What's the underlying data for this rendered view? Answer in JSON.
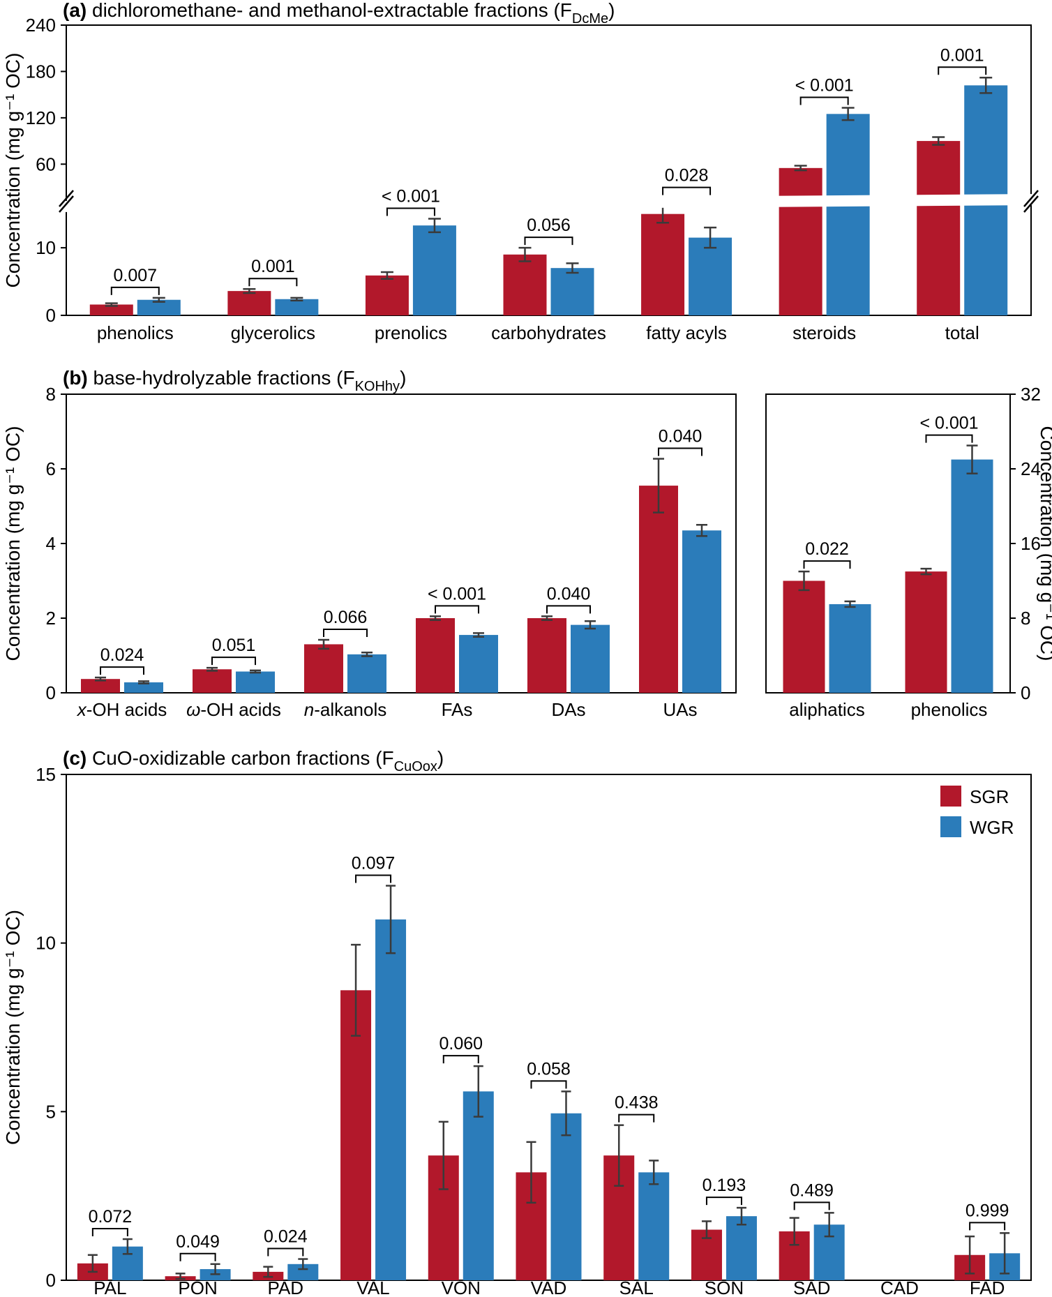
{
  "colors": {
    "sgr": "#b2182b",
    "wgr": "#2b7cba",
    "error_bar": "#3a3a3a",
    "axis": "#000000",
    "background": "#ffffff"
  },
  "legend": {
    "items": [
      {
        "label": "SGR",
        "color_key": "sgr"
      },
      {
        "label": "WGR",
        "color_key": "wgr"
      }
    ]
  },
  "chart_data": [
    {
      "id": "panel-a",
      "type": "bar",
      "title_segments": [
        {
          "t": "(a)",
          "bold": true
        },
        {
          "t": " dichloromethane- and methanol-extractable fractions (F"
        },
        {
          "t": "DcMe",
          "sub": true
        },
        {
          "t": ")"
        }
      ],
      "ylabel": "Concentration (mg g⁻¹ OC)",
      "axis_break": {
        "lower_range": [
          0,
          16
        ],
        "upper_range": [
          16,
          240
        ],
        "lower_ticks": [
          0,
          10
        ],
        "upper_ticks": [
          60,
          120,
          180,
          240
        ]
      },
      "categories": [
        "phenolics",
        "glycerolics",
        "prenolics",
        "carbohydrates",
        "fatty acyls",
        "steroids",
        "total"
      ],
      "series": [
        {
          "name": "SGR",
          "values": [
            1.6,
            3.6,
            5.9,
            9.0,
            15.0,
            55,
            90
          ],
          "errors": [
            0.2,
            0.3,
            0.5,
            1.0,
            1.3,
            3,
            5
          ]
        },
        {
          "name": "WGR",
          "values": [
            2.3,
            2.4,
            13.3,
            7.0,
            11.5,
            125,
            162
          ],
          "errors": [
            0.3,
            0.2,
            1.0,
            0.7,
            1.5,
            8,
            10
          ]
        }
      ],
      "p_values": [
        "0.007",
        "0.001",
        "< 0.001",
        "0.056",
        "0.028",
        "< 0.001",
        "0.001"
      ]
    },
    {
      "id": "panel-b-left",
      "type": "bar",
      "title_segments": [
        {
          "t": "(b)",
          "bold": true
        },
        {
          "t": " base-hydrolyzable fractions (F"
        },
        {
          "t": "KOHhy",
          "sub": true
        },
        {
          "t": ")"
        }
      ],
      "ylabel": "Concentration (mg g⁻¹ OC)",
      "ylim": [
        0,
        8
      ],
      "yticks": [
        0,
        2,
        4,
        6,
        8
      ],
      "categories": [
        {
          "segments": [
            {
              "t": "x",
              "italic": true
            },
            {
              "t": "-OH acids"
            }
          ]
        },
        {
          "segments": [
            {
              "t": "ω",
              "italic": true
            },
            {
              "t": "-OH acids"
            }
          ]
        },
        {
          "segments": [
            {
              "t": "n",
              "italic": true
            },
            {
              "t": "-alkanols"
            }
          ]
        },
        "FAs",
        "DAs",
        "UAs"
      ],
      "series": [
        {
          "name": "SGR",
          "values": [
            0.37,
            0.63,
            1.3,
            2.0,
            2.0,
            5.55
          ],
          "errors": [
            0.04,
            0.04,
            0.12,
            0.05,
            0.05,
            0.72
          ]
        },
        {
          "name": "WGR",
          "values": [
            0.28,
            0.57,
            1.03,
            1.55,
            1.82,
            4.35
          ],
          "errors": [
            0.03,
            0.03,
            0.05,
            0.05,
            0.1,
            0.15
          ]
        }
      ],
      "p_values": [
        "0.024",
        "0.051",
        "0.066",
        "< 0.001",
        "0.040",
        "0.040"
      ]
    },
    {
      "id": "panel-b-right",
      "type": "bar",
      "ylabel_right": "Concentration (mg g⁻¹ OC)",
      "ylim": [
        0,
        32
      ],
      "yticks": [
        0,
        8,
        16,
        24,
        32
      ],
      "categories": [
        "aliphatics",
        "phenolics"
      ],
      "series": [
        {
          "name": "SGR",
          "values": [
            12.0,
            13.0
          ],
          "errors": [
            1.0,
            0.3
          ]
        },
        {
          "name": "WGR",
          "values": [
            9.5,
            25.0
          ],
          "errors": [
            0.3,
            1.5
          ]
        }
      ],
      "p_values": [
        "0.022",
        "< 0.001"
      ]
    },
    {
      "id": "panel-c",
      "type": "bar",
      "title_segments": [
        {
          "t": "(c)",
          "bold": true
        },
        {
          "t": " CuO-oxidizable carbon fractions (F"
        },
        {
          "t": "CuOox",
          "sub": true
        },
        {
          "t": ")"
        }
      ],
      "ylabel": "Concentration (mg g⁻¹ OC)",
      "ylim": [
        0,
        15
      ],
      "yticks": [
        0,
        5,
        10,
        15
      ],
      "categories": [
        "PAL",
        "PON",
        "PAD",
        "VAL",
        "VON",
        "VAD",
        "SAL",
        "SON",
        "SAD",
        "CAD",
        "FAD"
      ],
      "series": [
        {
          "name": "SGR",
          "values": [
            0.5,
            0.12,
            0.25,
            8.6,
            3.7,
            3.2,
            3.7,
            1.5,
            1.45,
            0,
            0.75
          ],
          "errors": [
            0.25,
            0.08,
            0.15,
            1.35,
            1.0,
            0.9,
            0.9,
            0.25,
            0.4,
            0,
            0.55
          ]
        },
        {
          "name": "WGR",
          "values": [
            1.0,
            0.33,
            0.48,
            10.7,
            5.6,
            4.95,
            3.2,
            1.9,
            1.65,
            0,
            0.8
          ],
          "errors": [
            0.22,
            0.15,
            0.15,
            1.0,
            0.75,
            0.65,
            0.35,
            0.25,
            0.35,
            0,
            0.6
          ]
        }
      ],
      "p_values": [
        "0.072",
        "0.049",
        "0.024",
        "0.097",
        "0.060",
        "0.058",
        "0.438",
        "0.193",
        "0.489",
        null,
        "0.999"
      ],
      "show_legend": true
    }
  ]
}
